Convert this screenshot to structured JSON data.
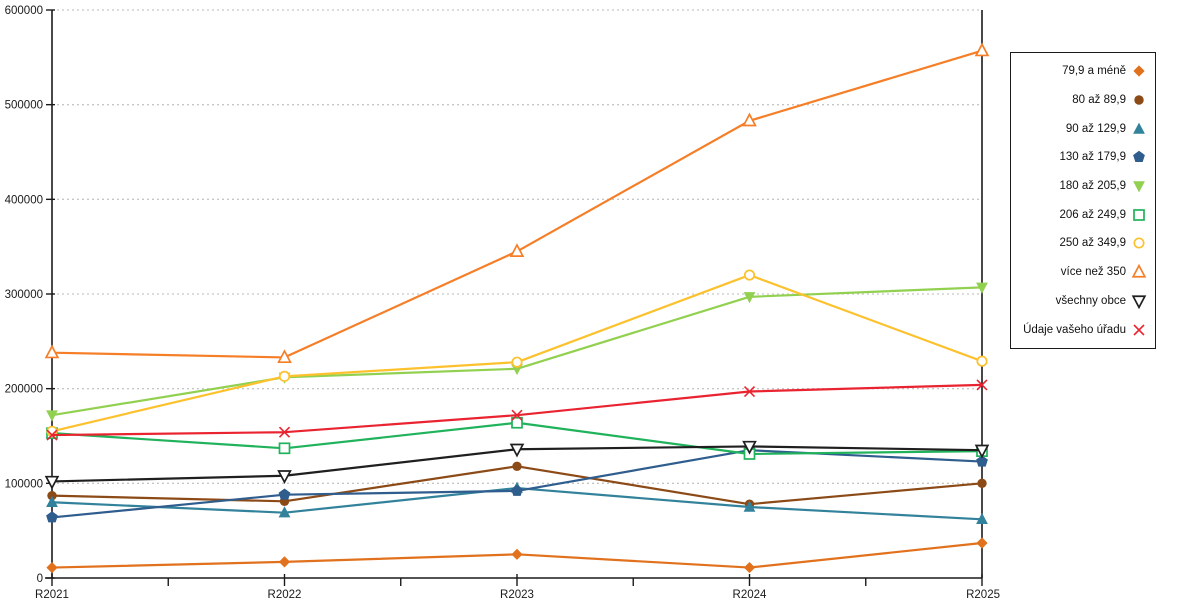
{
  "chart_data": {
    "type": "line",
    "title": "",
    "xlabel": "",
    "ylabel": "",
    "categories": [
      "R2021",
      "R2022",
      "R2023",
      "R2024",
      "R2025"
    ],
    "yticks": [
      "0",
      "100000",
      "200000",
      "300000",
      "400000",
      "500000",
      "600000"
    ],
    "ylim": [
      0,
      600000
    ],
    "ytick_step": 100000,
    "grid": "horizontal-dashed",
    "legend_position": "right",
    "series": [
      {
        "name": "79,9 a méně",
        "marker": "diamond",
        "fill": "filled",
        "color": "#e1711c",
        "values": [
          11000,
          17000,
          25000,
          11000,
          37000
        ]
      },
      {
        "name": "80 až 89,9",
        "marker": "circle",
        "fill": "filled",
        "color": "#8c4a17",
        "values": [
          87000,
          81000,
          118000,
          78000,
          100000
        ]
      },
      {
        "name": "90 až 129,9",
        "marker": "triangle-up",
        "fill": "filled",
        "color": "#32829b",
        "values": [
          80000,
          69000,
          95000,
          75000,
          62000
        ]
      },
      {
        "name": "130 až 179,9",
        "marker": "pentagon",
        "fill": "filled",
        "color": "#2e5d8e",
        "values": [
          64000,
          88000,
          92000,
          135000,
          123000
        ]
      },
      {
        "name": "180 až 205,9",
        "marker": "triangle-down",
        "fill": "filled",
        "color": "#92d050",
        "values": [
          172000,
          212000,
          221000,
          297000,
          307000
        ]
      },
      {
        "name": "206 až 249,9",
        "marker": "square",
        "fill": "open",
        "color": "#21b25c",
        "values": [
          153000,
          137000,
          164000,
          131000,
          134000
        ]
      },
      {
        "name": "250 až 349,9",
        "marker": "circle",
        "fill": "open",
        "color": "#fdc12e",
        "values": [
          155000,
          213000,
          228000,
          320000,
          229000
        ]
      },
      {
        "name": "více než 350",
        "marker": "triangle-up",
        "fill": "open",
        "color": "#f57e27",
        "values": [
          238000,
          233000,
          345000,
          483000,
          557000
        ]
      },
      {
        "name": "všechny obce",
        "marker": "triangle-down",
        "fill": "open",
        "color": "#1f1f1f",
        "values": [
          102000,
          108000,
          136000,
          139000,
          135000
        ]
      },
      {
        "name": "Údaje vašeho úřadu",
        "marker": "x",
        "fill": "open",
        "color": "#ea2331",
        "values": [
          151000,
          154000,
          172000,
          197000,
          204000
        ]
      }
    ]
  },
  "colors": {
    "background": "#ffffff",
    "axis": "#1a1a1a",
    "gridline": "#c6c6c6",
    "tick_label": "#1a1a1a"
  }
}
